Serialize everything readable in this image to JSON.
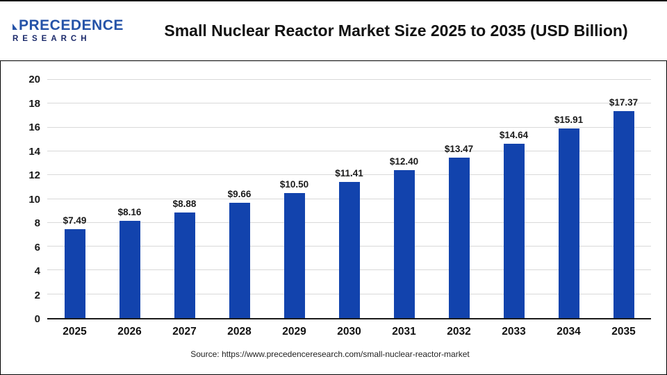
{
  "header": {
    "title": "Small Nuclear Reactor Market Size 2025 to 2035 (USD Billion)",
    "logo": {
      "line1": "PRECEDENCE",
      "line2": "RESEARCH"
    }
  },
  "footer": {
    "source": "Source: https://www.precedenceresearch.com/small-nuclear-reactor-market"
  },
  "chart_data": {
    "type": "bar",
    "title": "Small Nuclear Reactor Market Size 2025 to 2035 (USD Billion)",
    "categories": [
      "2025",
      "2026",
      "2027",
      "2028",
      "2029",
      "2030",
      "2031",
      "2032",
      "2033",
      "2034",
      "2035"
    ],
    "values": [
      7.49,
      8.16,
      8.88,
      9.66,
      10.5,
      11.41,
      12.4,
      13.47,
      14.64,
      15.91,
      17.37
    ],
    "value_labels": [
      "$7.49",
      "$8.16",
      "$8.88",
      "$9.66",
      "$10.50",
      "$11.41",
      "$12.40",
      "$13.47",
      "$14.64",
      "$15.91",
      "$17.37"
    ],
    "xlabel": "",
    "ylabel": "",
    "ylim": [
      0,
      20
    ],
    "yticks": [
      0,
      2,
      4,
      6,
      8,
      10,
      12,
      14,
      16,
      18,
      20
    ],
    "grid": true,
    "legend_position": "none",
    "bar_color": "#1243ad",
    "gridline_color": "#d9d9d9"
  }
}
